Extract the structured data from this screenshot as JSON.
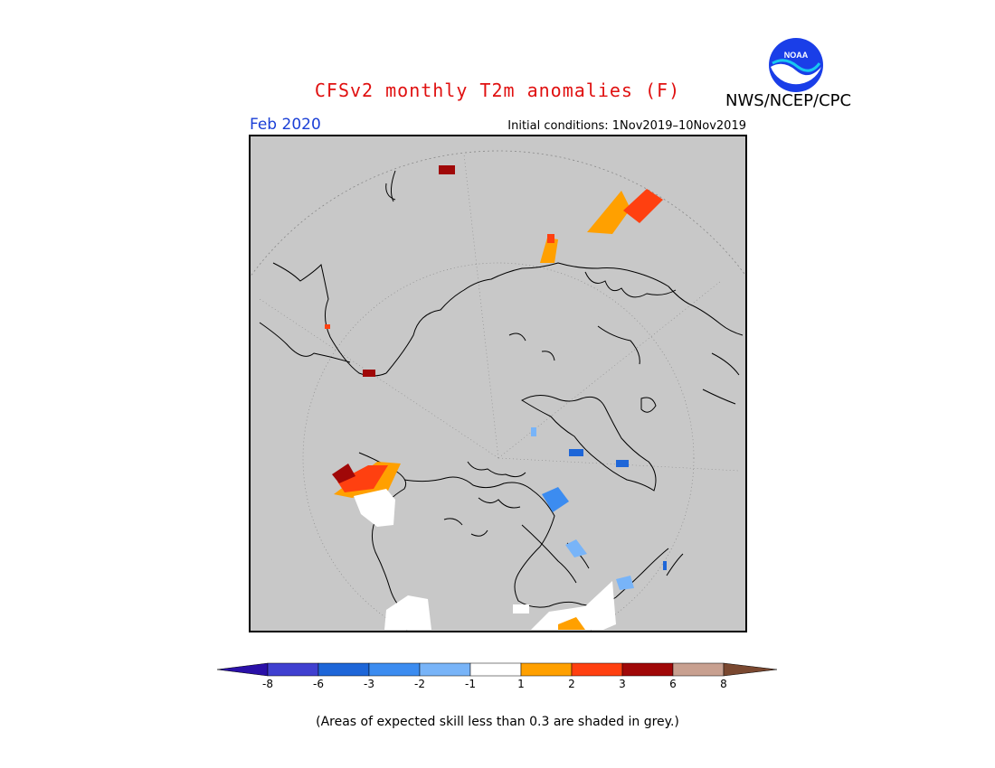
{
  "header": {
    "title": "CFSv2 monthly T2m anomalies (F)",
    "agency": "NWS/NCEP/CPC",
    "logo_text": "NOAA"
  },
  "map": {
    "valid_month": "Feb 2020",
    "initial_conditions": "Initial conditions: 1Nov2019–10Nov2019",
    "projection": "north-polar-stereographic",
    "skill_mask_color": "#c8c8c8"
  },
  "colorbar": {
    "ticks": [
      "-8",
      "-6",
      "-3",
      "-2",
      "-1",
      "1",
      "2",
      "3",
      "6",
      "8"
    ],
    "colors": [
      "#2a10a8",
      "#4040d0",
      "#1e66d8",
      "#3c8cf0",
      "#78b4f8",
      "#ffffff",
      "#ffa000",
      "#ff4010",
      "#a00808",
      "#c8a090",
      "#7a4830"
    ]
  },
  "footnote": "(Areas of expected skill less than 0.3 are shaded in grey.)"
}
